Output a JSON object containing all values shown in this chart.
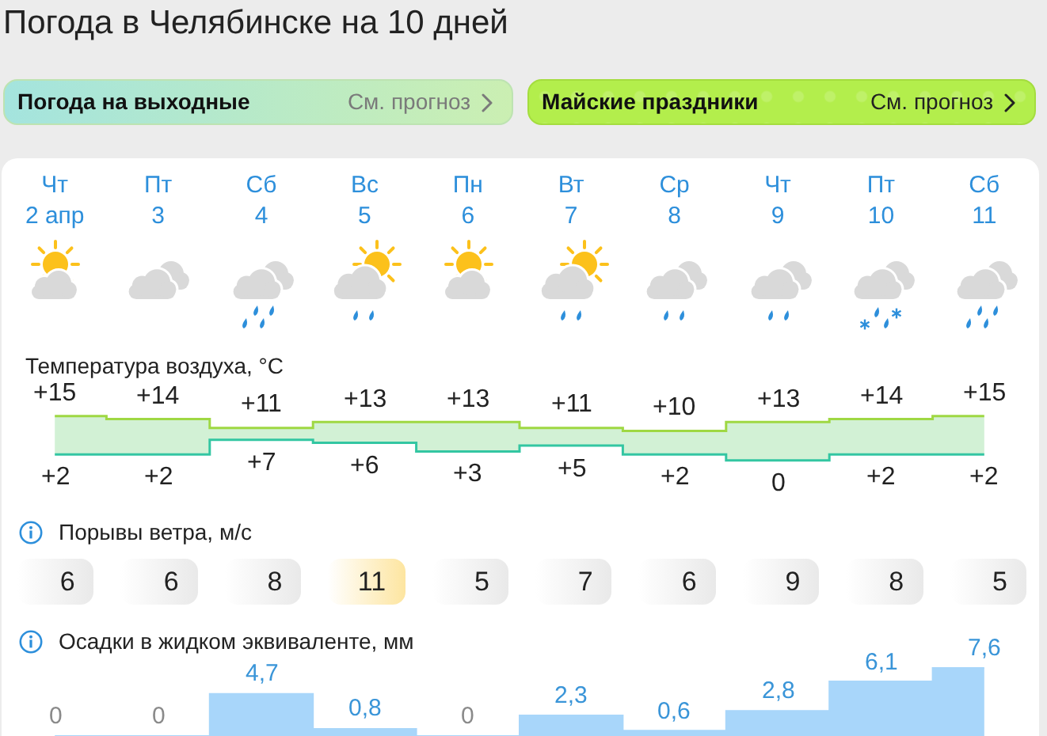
{
  "chart_data": [
    {
      "type": "other",
      "title": "Погода в Челябинске на 10 дней",
      "annotations": [
        "Погода на выходные",
        "См. прогноз",
        "Майские праздники",
        "См. прогноз"
      ]
    },
    {
      "type": "step",
      "title": "Температура воздуха, °C",
      "categories": [
        "Чт\n2 апр",
        "Пт\n3",
        "Сб\n4",
        "Вс\n5",
        "Пн\n6",
        "Вт\n7",
        "Ср\n8",
        "Чт\n9",
        "Пт\n10",
        "Сб\n11"
      ],
      "tick_labels": "x",
      "series": [
        {
          "color": "#9fd843",
          "values": [
            15,
            14,
            11,
            13,
            13,
            11,
            10,
            13,
            14,
            15
          ],
          "value_labels": [
            "+15",
            "+14",
            "+11",
            "+13",
            "+13",
            "+11",
            "+10",
            "+13",
            "+14",
            "+15"
          ],
          "lower": [
            2,
            2,
            7,
            6,
            3,
            5,
            2,
            0,
            2,
            2
          ],
          "upper": [
            15,
            14,
            11,
            13,
            13,
            11,
            10,
            13,
            14,
            15
          ]
        },
        {
          "color": "#33c6a2",
          "values": [
            2,
            2,
            7,
            6,
            3,
            5,
            2,
            0,
            2,
            2
          ],
          "value_labels": [
            "+2",
            "+2",
            "+7",
            "+6",
            "+3",
            "+5",
            "+2",
            "0",
            "+2",
            "+2"
          ]
        }
      ]
    },
    {
      "type": "other",
      "title": "Порывы ветра, м/с",
      "values": [
        6,
        6,
        8,
        11,
        5,
        7,
        6,
        9,
        8,
        5
      ],
      "colors": [
        "#e9e9e9",
        "#e9e9e9",
        "#e9e9e9",
        "#fde5a0",
        "#e9e9e9",
        "#e9e9e9",
        "#e9e9e9",
        "#e9e9e9",
        "#e9e9e9",
        "#e9e9e9"
      ],
      "data_labels": true
    },
    {
      "type": "area",
      "title": "Осадки в жидком эквиваленте, мм",
      "categories": [
        null,
        null,
        null,
        null,
        null,
        null,
        null,
        null,
        null,
        null
      ],
      "values": [
        0,
        0,
        4.7,
        0.8,
        0,
        2.3,
        0.6,
        2.8,
        6.1,
        7.6
      ],
      "value_labels": [
        "0",
        "0",
        "4,7",
        "0,8",
        "0",
        "2,3",
        "0,6",
        "2,8",
        "6,1",
        "7,6"
      ],
      "color": "#a8d6fa"
    }
  ]
}
